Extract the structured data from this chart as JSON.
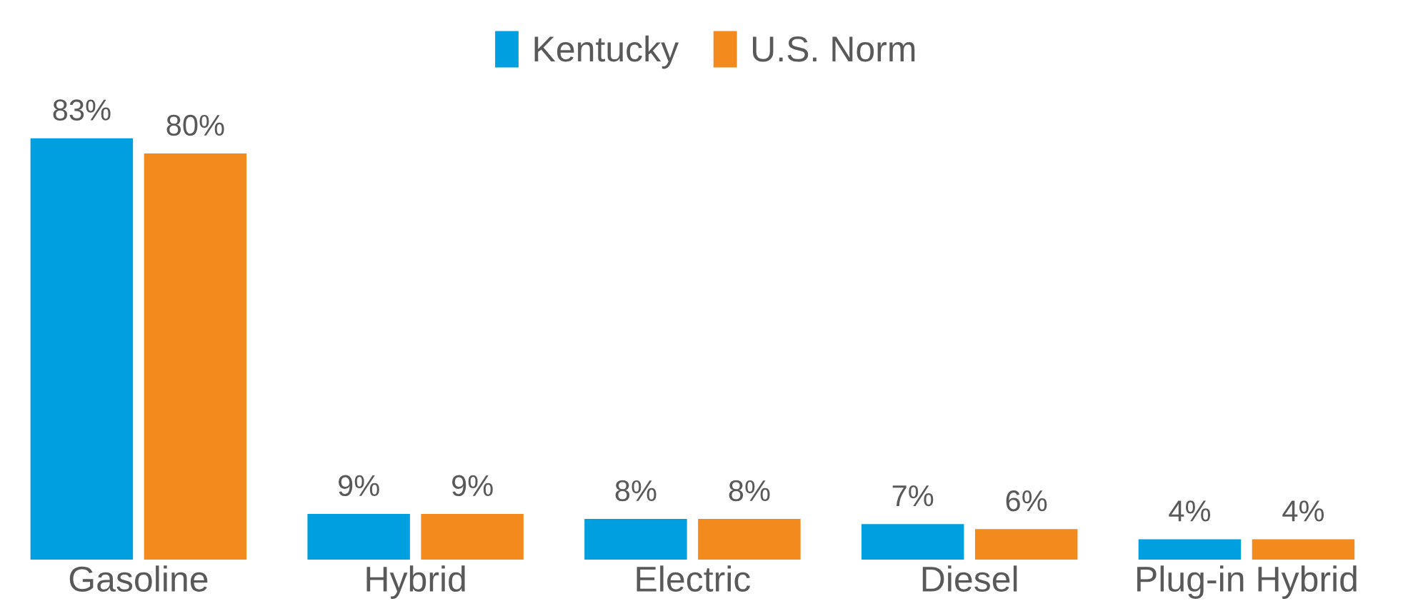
{
  "chart_data": {
    "type": "bar",
    "categories": [
      "Gasoline",
      "Hybrid",
      "Electric",
      "Diesel",
      "Plug-in Hybrid"
    ],
    "relative": false,
    "legend": "top",
    "series": [
      {
        "name": "Kentucky",
        "color": "#009fdf",
        "values": [
          83,
          9,
          8,
          7,
          4
        ],
        "value_labels": [
          "83%",
          "9%",
          "8%",
          "7%",
          "4%"
        ]
      },
      {
        "name": "U.S. Norm",
        "color": "#f28a1e",
        "values": [
          80,
          9,
          8,
          6,
          4
        ],
        "value_labels": [
          "80%",
          "9%",
          "8%",
          "6%",
          "4%"
        ]
      }
    ]
  }
}
